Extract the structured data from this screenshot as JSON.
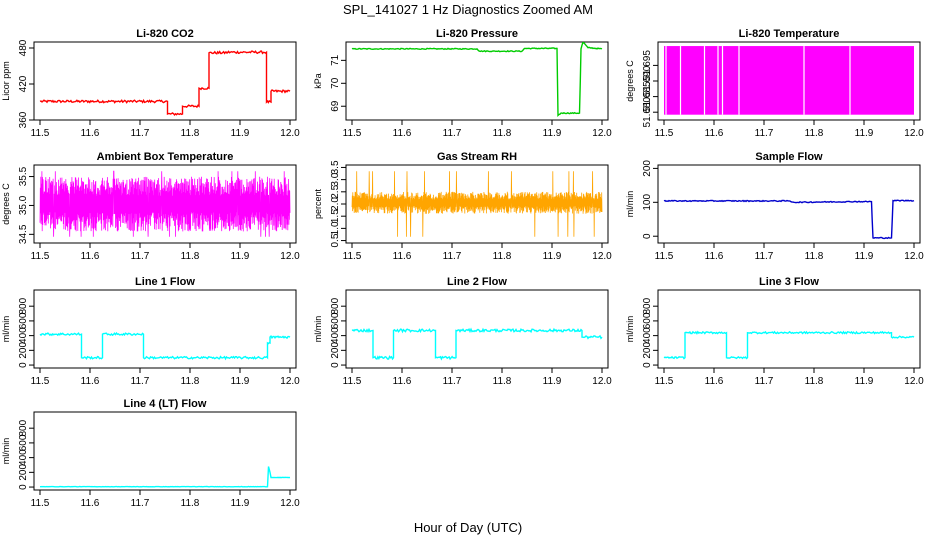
{
  "figure": {
    "title": "SPL_141027  1 Hz Diagnostics Zoomed AM",
    "xlabel": "Hour of Day (UTC)"
  },
  "chart_data": [
    {
      "type": "line",
      "title": "Li-820 CO2",
      "ylabel": "Licor ppm",
      "color": "#ff0000",
      "xlim": [
        11.5,
        12.0
      ],
      "ylim": [
        360,
        490
      ],
      "xticks": [
        11.5,
        11.6,
        11.7,
        11.8,
        11.9,
        12.0
      ],
      "xtick_labels": [
        "11.5",
        "11.6",
        "11.7",
        "11.8",
        "11.9",
        "12.0"
      ],
      "yticks": [
        360,
        420,
        480
      ],
      "ytick_labels": [
        "360",
        "420",
        "480"
      ],
      "noise": 2,
      "series": [
        {
          "x": [
            11.5,
            11.755,
            11.755,
            11.785,
            11.785,
            11.818,
            11.818,
            11.838,
            11.838,
            11.873,
            11.873,
            11.953,
            11.953,
            11.962,
            11.962,
            12.0
          ],
          "y": [
            391,
            391,
            370,
            370,
            383,
            383,
            413,
            413,
            472,
            472,
            473,
            473,
            390,
            390,
            408,
            408
          ]
        }
      ]
    },
    {
      "type": "line",
      "title": "Li-820 Pressure",
      "ylabel": "kPa",
      "color": "#00cc00",
      "xlim": [
        11.5,
        12.0
      ],
      "ylim": [
        68.4,
        71.8
      ],
      "xticks": [
        11.5,
        11.6,
        11.7,
        11.8,
        11.9,
        12.0
      ],
      "xtick_labels": [
        "11.5",
        "11.6",
        "11.7",
        "11.8",
        "11.9",
        "12.0"
      ],
      "yticks": [
        69,
        70,
        71
      ],
      "ytick_labels": [
        "69",
        "70",
        "71"
      ],
      "noise": 0.02,
      "series": [
        {
          "x": [
            11.5,
            11.75,
            11.755,
            11.84,
            11.845,
            11.91,
            11.912,
            11.918,
            11.955,
            11.958,
            11.962,
            11.972,
            12.0
          ],
          "y": [
            71.5,
            71.5,
            71.4,
            71.4,
            71.52,
            71.52,
            68.6,
            68.7,
            68.7,
            71.5,
            71.8,
            71.55,
            71.5
          ]
        }
      ]
    },
    {
      "type": "area",
      "title": "Li-820 Temperature",
      "ylabel": "degrees C",
      "color": "#ff00ff",
      "xlim": [
        11.5,
        12.0
      ],
      "ylim": [
        51.6775,
        51.7025
      ],
      "xticks": [
        11.5,
        11.6,
        11.7,
        11.8,
        11.9,
        12.0
      ],
      "xtick_labels": [
        "11.5",
        "11.6",
        "11.7",
        "11.8",
        "11.9",
        "12.0"
      ],
      "yticks": [
        51.68,
        51.685,
        51.69,
        51.695
      ],
      "ytick_labels": [
        "51.680",
        "51.685",
        "51.690",
        "51.695"
      ],
      "band": [
        51.6792,
        51.7012
      ],
      "gaps": [
        11.504,
        11.533,
        11.581,
        11.608,
        11.617,
        11.65,
        11.78,
        11.872
      ]
    },
    {
      "type": "line",
      "title": "Ambient Box Temperature",
      "ylabel": "degrees C",
      "color": "#ff00ff",
      "xlim": [
        11.5,
        12.0
      ],
      "ylim": [
        34.35,
        35.7
      ],
      "xticks": [
        11.5,
        11.6,
        11.7,
        11.8,
        11.9,
        12.0
      ],
      "xtick_labels": [
        "11.5",
        "11.6",
        "11.7",
        "11.8",
        "11.9",
        "12.0"
      ],
      "yticks": [
        34.5,
        35.0,
        35.5
      ],
      "ytick_labels": [
        "34.5",
        "35.0",
        "35.5"
      ],
      "osc": [
        34.55,
        35.5
      ],
      "series": []
    },
    {
      "type": "line",
      "title": "Gas Stream RH",
      "ylabel": "percent",
      "color": "#ffa500",
      "xlim": [
        11.5,
        12.0
      ],
      "ylim": [
        0.4,
        3.6
      ],
      "xticks": [
        11.5,
        11.6,
        11.7,
        11.8,
        11.9,
        12.0
      ],
      "xtick_labels": [
        "11.5",
        "11.6",
        "11.7",
        "11.8",
        "11.9",
        "12.0"
      ],
      "yticks": [
        0.5,
        1.0,
        1.5,
        2.0,
        2.5,
        3.0,
        3.5
      ],
      "ytick_labels": [
        "0.5",
        "1.0",
        "1.5",
        "2.0",
        "2.5",
        "3.0",
        "3.5"
      ],
      "osc": [
        1.6,
        2.5
      ],
      "series": []
    },
    {
      "type": "line",
      "title": "Sample Flow",
      "ylabel": "ml/min",
      "color": "#0000cc",
      "xlim": [
        11.5,
        12.0
      ],
      "ylim": [
        -20,
        210
      ],
      "xticks": [
        11.5,
        11.6,
        11.7,
        11.8,
        11.9,
        12.0
      ],
      "xtick_labels": [
        "11.5",
        "11.6",
        "11.7",
        "11.8",
        "11.9",
        "12.0"
      ],
      "yticks": [
        0,
        100,
        200
      ],
      "ytick_labels": [
        "0",
        "100",
        "200"
      ],
      "noise": 1.5,
      "series": [
        {
          "x": [
            11.5,
            11.75,
            11.76,
            11.88,
            11.915,
            11.918,
            11.955,
            11.958,
            12.0
          ],
          "y": [
            104,
            104,
            100,
            102,
            102,
            -5,
            -5,
            105,
            105
          ]
        }
      ]
    },
    {
      "type": "line",
      "title": "Line 1 Flow",
      "ylabel": "ml/min",
      "color": "#00ffff",
      "xlim": [
        11.5,
        12.0
      ],
      "ylim": [
        -40,
        1020
      ],
      "xticks": [
        11.5,
        11.6,
        11.7,
        11.8,
        11.9,
        12.0
      ],
      "xtick_labels": [
        "11.5",
        "11.6",
        "11.7",
        "11.8",
        "11.9",
        "12.0"
      ],
      "yticks": [
        0,
        200,
        400,
        600,
        800
      ],
      "ytick_labels": [
        "0",
        "200",
        "400",
        "600",
        "800"
      ],
      "noise": 15,
      "series": [
        {
          "x": [
            11.5,
            11.583,
            11.583,
            11.625,
            11.625,
            11.707,
            11.707,
            11.955,
            11.955,
            11.96,
            11.96,
            12.0
          ],
          "y": [
            420,
            420,
            100,
            100,
            420,
            420,
            100,
            100,
            300,
            300,
            380,
            380
          ]
        }
      ]
    },
    {
      "type": "line",
      "title": "Line 2 Flow",
      "ylabel": "ml/min",
      "color": "#00ffff",
      "xlim": [
        11.5,
        12.0
      ],
      "ylim": [
        -40,
        1020
      ],
      "xticks": [
        11.5,
        11.6,
        11.7,
        11.8,
        11.9,
        12.0
      ],
      "xtick_labels": [
        "11.5",
        "11.6",
        "11.7",
        "11.8",
        "11.9",
        "12.0"
      ],
      "yticks": [
        0,
        200,
        400,
        600,
        800
      ],
      "ytick_labels": [
        "0",
        "200",
        "400",
        "600",
        "800"
      ],
      "noise": 18,
      "series": [
        {
          "x": [
            11.5,
            11.542,
            11.542,
            11.583,
            11.583,
            11.667,
            11.667,
            11.708,
            11.708,
            11.96,
            11.96,
            12.0
          ],
          "y": [
            470,
            470,
            100,
            100,
            470,
            470,
            100,
            100,
            470,
            470,
            380,
            380
          ]
        }
      ]
    },
    {
      "type": "line",
      "title": "Line 3 Flow",
      "ylabel": "ml/min",
      "color": "#00ffff",
      "xlim": [
        11.5,
        12.0
      ],
      "ylim": [
        -40,
        1020
      ],
      "xticks": [
        11.5,
        11.6,
        11.7,
        11.8,
        11.9,
        12.0
      ],
      "xtick_labels": [
        "11.5",
        "11.6",
        "11.7",
        "11.8",
        "11.9",
        "12.0"
      ],
      "yticks": [
        0,
        200,
        400,
        600,
        800
      ],
      "ytick_labels": [
        "0",
        "200",
        "400",
        "600",
        "800"
      ],
      "noise": 12,
      "series": [
        {
          "x": [
            11.5,
            11.542,
            11.542,
            11.625,
            11.625,
            11.667,
            11.667,
            11.955,
            11.955,
            12.0
          ],
          "y": [
            100,
            100,
            440,
            440,
            100,
            100,
            440,
            440,
            380,
            380
          ]
        }
      ]
    },
    {
      "type": "line",
      "title": "Line 4 (LT) Flow",
      "ylabel": "ml/min",
      "color": "#00ffff",
      "xlim": [
        11.5,
        12.0
      ],
      "ylim": [
        -40,
        1020
      ],
      "xticks": [
        11.5,
        11.6,
        11.7,
        11.8,
        11.9,
        12.0
      ],
      "xtick_labels": [
        "11.5",
        "11.6",
        "11.7",
        "11.8",
        "11.9",
        "12.0"
      ],
      "yticks": [
        0,
        200,
        400,
        600,
        800
      ],
      "ytick_labels": [
        "0",
        "200",
        "400",
        "600",
        "800"
      ],
      "noise": 2,
      "series": [
        {
          "x": [
            11.5,
            11.955,
            11.957,
            11.96,
            11.962,
            12.0
          ],
          "y": [
            5,
            5,
            280,
            200,
            130,
            130
          ]
        }
      ]
    }
  ]
}
